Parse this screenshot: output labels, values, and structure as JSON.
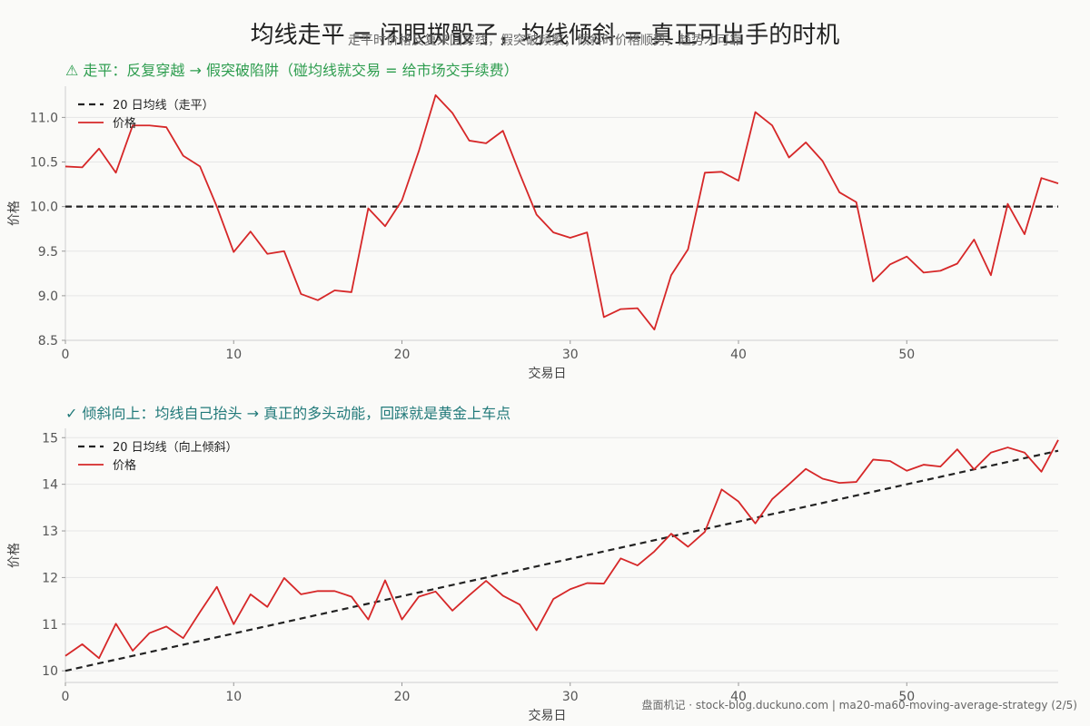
{
  "header": {
    "title": "均线走平 = 闭眼掷骰子，均线倾斜 = 真正可出手的时机",
    "subtitle": "走平时价格反复来回穿线，假突破频繁；倾斜时价格顺势，趋势才可靠"
  },
  "footer": {
    "text": "盘面机记 · stock-blog.duckuno.com | ma20-ma60-moving-average-strategy (2/5)"
  },
  "colors": {
    "price": "#d62728",
    "ma": "#222222",
    "panel1_title": "#2e9d4f",
    "panel2_title": "#227a7a"
  },
  "chart_data": [
    {
      "type": "line",
      "title": "⚠ 走平：反复穿越 → 假突破陷阱（碰均线就交易 = 给市场交手续费）",
      "xlabel": "交易日",
      "ylabel": "价格",
      "xlim": [
        0,
        59
      ],
      "ylim": [
        8.5,
        11.35
      ],
      "xticks": [
        0,
        10,
        20,
        30,
        40,
        50
      ],
      "yticks": [
        8.5,
        9.0,
        9.5,
        10.0,
        10.5,
        11.0
      ],
      "ytick_labels": [
        "8.5",
        "9.0",
        "9.5",
        "10.0",
        "10.5",
        "11.0"
      ],
      "grid": "horizontal",
      "legend": "top-left",
      "series": [
        {
          "name": "20 日均线（走平）",
          "style": "dashed",
          "x": [
            0,
            59
          ],
          "values": [
            10.0,
            10.0
          ]
        },
        {
          "name": "价格",
          "style": "solid",
          "values": [
            10.45,
            10.44,
            10.65,
            10.38,
            10.91,
            10.91,
            10.89,
            10.57,
            10.45,
            10.0,
            9.49,
            9.72,
            9.47,
            9.5,
            9.02,
            8.95,
            9.06,
            9.04,
            9.98,
            9.78,
            10.07,
            10.62,
            11.25,
            11.05,
            10.74,
            10.71,
            10.85,
            10.37,
            9.91,
            9.71,
            9.65,
            9.71,
            8.76,
            8.85,
            8.86,
            8.62,
            9.23,
            9.52,
            10.38,
            10.39,
            10.29,
            11.06,
            10.91,
            10.55,
            10.72,
            10.51,
            10.16,
            10.05,
            9.16,
            9.35,
            9.44,
            9.26,
            9.28,
            9.36,
            9.63,
            9.23,
            10.03,
            9.69,
            10.32,
            10.26
          ]
        }
      ]
    },
    {
      "type": "line",
      "title": "✓ 倾斜向上：均线自己抬头 → 真正的多头动能，回踩就是黄金上车点",
      "xlabel": "交易日",
      "ylabel": "价格",
      "xlim": [
        0,
        59
      ],
      "ylim": [
        9.75,
        15.2
      ],
      "xticks": [
        0,
        10,
        20,
        30,
        40,
        50
      ],
      "yticks": [
        10,
        11,
        12,
        13,
        14,
        15
      ],
      "ytick_labels": [
        "10",
        "11",
        "12",
        "13",
        "14",
        "15"
      ],
      "grid": "horizontal",
      "legend": "top-left",
      "series": [
        {
          "name": "20 日均线（向上倾斜）",
          "style": "dashed",
          "x": [
            0,
            59
          ],
          "values": [
            10.0,
            14.72
          ]
        },
        {
          "name": "价格",
          "style": "solid",
          "values": [
            10.32,
            10.57,
            10.27,
            11.01,
            10.43,
            10.81,
            10.95,
            10.7,
            11.26,
            11.8,
            11.0,
            11.64,
            11.37,
            11.99,
            11.64,
            11.71,
            11.71,
            11.59,
            11.1,
            11.94,
            11.1,
            11.59,
            11.7,
            11.29,
            11.62,
            11.93,
            11.61,
            11.42,
            10.87,
            11.54,
            11.75,
            11.88,
            11.87,
            12.41,
            12.26,
            12.56,
            12.94,
            12.66,
            12.98,
            13.89,
            13.63,
            13.16,
            13.68,
            14.0,
            14.33,
            14.12,
            14.03,
            14.05,
            14.53,
            14.5,
            14.29,
            14.42,
            14.38,
            14.75,
            14.32,
            14.68,
            14.79,
            14.68,
            14.27,
            14.95
          ]
        }
      ]
    }
  ]
}
